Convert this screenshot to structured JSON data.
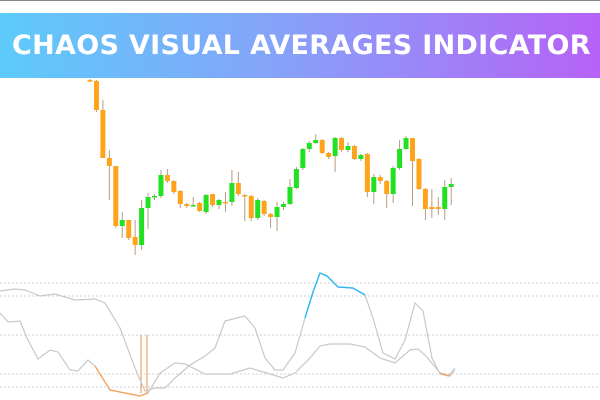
{
  "banner": {
    "title": "CHAOS VISUAL AVERAGES INDICATOR",
    "gradient": [
      "#4fc6fa",
      "#b25af6"
    ]
  },
  "colors": {
    "bull": "#22e022",
    "bear": "#ffa31a",
    "wick": "#b89a80",
    "indicator_line": "#c8c8c8",
    "bull_signal": "#29b6f6",
    "bear_signal": "#f4a460",
    "grid": "#d0d0d0"
  },
  "chart_data": [
    {
      "type": "candlestick",
      "note_units": "relative price",
      "candles": [
        {
          "o": 180,
          "c": 179,
          "h": 181,
          "l": 178
        },
        {
          "o": 179,
          "c": 150,
          "h": 180,
          "l": 148
        },
        {
          "o": 150,
          "c": 102,
          "h": 160,
          "l": 102
        },
        {
          "o": 102,
          "c": 94,
          "h": 110,
          "l": 60
        },
        {
          "o": 94,
          "c": 34,
          "h": 94,
          "l": 32
        },
        {
          "o": 34,
          "c": 40,
          "h": 48,
          "l": 22
        },
        {
          "o": 40,
          "c": 22,
          "h": 40,
          "l": 20
        },
        {
          "o": 23,
          "c": 15,
          "h": 40,
          "l": 5
        },
        {
          "o": 15,
          "c": 52,
          "h": 60,
          "l": 10
        },
        {
          "o": 52,
          "c": 63,
          "h": 67,
          "l": 31
        },
        {
          "o": 63,
          "c": 64,
          "h": 66,
          "l": 60
        },
        {
          "o": 64,
          "c": 85,
          "h": 90,
          "l": 62
        },
        {
          "o": 85,
          "c": 79,
          "h": 91,
          "l": 77
        },
        {
          "o": 79,
          "c": 68,
          "h": 80,
          "l": 66
        },
        {
          "o": 69,
          "c": 56,
          "h": 70,
          "l": 52
        },
        {
          "o": 56,
          "c": 54,
          "h": 57,
          "l": 52
        },
        {
          "o": 54,
          "c": 55,
          "h": 63,
          "l": 53
        },
        {
          "o": 57,
          "c": 49,
          "h": 58,
          "l": 48
        },
        {
          "o": 48,
          "c": 65,
          "h": 66,
          "l": 46
        },
        {
          "o": 66,
          "c": 55,
          "h": 66,
          "l": 53
        },
        {
          "o": 55,
          "c": 60,
          "h": 61,
          "l": 51
        },
        {
          "o": 58,
          "c": 57,
          "h": 68,
          "l": 48
        },
        {
          "o": 58,
          "c": 77,
          "h": 90,
          "l": 54
        },
        {
          "o": 77,
          "c": 66,
          "h": 88,
          "l": 64
        },
        {
          "o": 65,
          "c": 64,
          "h": 66,
          "l": 39
        },
        {
          "o": 64,
          "c": 42,
          "h": 65,
          "l": 39
        },
        {
          "o": 42,
          "c": 60,
          "h": 62,
          "l": 40
        },
        {
          "o": 59,
          "c": 46,
          "h": 60,
          "l": 44
        },
        {
          "o": 46,
          "c": 43,
          "h": 47,
          "l": 32
        },
        {
          "o": 43,
          "c": 53,
          "h": 58,
          "l": 29
        },
        {
          "o": 53,
          "c": 56,
          "h": 58,
          "l": 50
        },
        {
          "o": 56,
          "c": 73,
          "h": 81,
          "l": 55
        },
        {
          "o": 72,
          "c": 91,
          "h": 93,
          "l": 71
        },
        {
          "o": 92,
          "c": 111,
          "h": 112,
          "l": 90
        },
        {
          "o": 111,
          "c": 117,
          "h": 119,
          "l": 108
        },
        {
          "o": 117,
          "c": 120,
          "h": 126,
          "l": 116
        },
        {
          "o": 120,
          "c": 107,
          "h": 121,
          "l": 106
        },
        {
          "o": 107,
          "c": 103,
          "h": 108,
          "l": 101
        },
        {
          "o": 104,
          "c": 122,
          "h": 123,
          "l": 88
        },
        {
          "o": 122,
          "c": 110,
          "h": 123,
          "l": 108
        },
        {
          "o": 110,
          "c": 114,
          "h": 118,
          "l": 108
        },
        {
          "o": 114,
          "c": 101,
          "h": 115,
          "l": 100
        },
        {
          "o": 101,
          "c": 105,
          "h": 106,
          "l": 99
        },
        {
          "o": 106,
          "c": 68,
          "h": 107,
          "l": 63
        },
        {
          "o": 68,
          "c": 83,
          "h": 86,
          "l": 56
        },
        {
          "o": 83,
          "c": 79,
          "h": 85,
          "l": 76
        },
        {
          "o": 79,
          "c": 66,
          "h": 80,
          "l": 52
        },
        {
          "o": 66,
          "c": 92,
          "h": 94,
          "l": 57
        },
        {
          "o": 92,
          "c": 111,
          "h": 120,
          "l": 90
        },
        {
          "o": 111,
          "c": 122,
          "h": 124,
          "l": 110
        },
        {
          "o": 122,
          "c": 99,
          "h": 122,
          "l": 54
        },
        {
          "o": 101,
          "c": 71,
          "h": 102,
          "l": 70
        },
        {
          "o": 71,
          "c": 51,
          "h": 72,
          "l": 40
        },
        {
          "o": 53,
          "c": 51,
          "h": 71,
          "l": 42
        },
        {
          "o": 53,
          "c": 51,
          "h": 63,
          "l": 45
        },
        {
          "o": 51,
          "c": 73,
          "h": 80,
          "l": 40
        },
        {
          "o": 73,
          "c": 76,
          "h": 82,
          "l": 55
        }
      ]
    },
    {
      "type": "line",
      "grid": "dotted horizontal",
      "levels": [
        105,
        92,
        53,
        14,
        1
      ],
      "series": [
        {
          "values": [
            [
              0,
              97
            ],
            [
              15,
              99
            ],
            [
              25,
              98
            ],
            [
              40,
              92
            ],
            [
              55,
              94
            ],
            [
              75,
              88
            ],
            [
              95,
              89
            ],
            [
              105,
              85
            ],
            [
              120,
              60
            ],
            [
              135,
              20
            ],
            [
              145,
              -3
            ],
            [
              155,
              0
            ],
            [
              165,
              0
            ],
            [
              175,
              10
            ],
            [
              190,
              23
            ],
            [
              205,
              32
            ],
            [
              215,
              40
            ],
            [
              225,
              67
            ],
            [
              237,
              70
            ],
            [
              245,
              72
            ],
            [
              255,
              60
            ],
            [
              265,
              30
            ],
            [
              275,
              18
            ],
            [
              283,
              18
            ],
            [
              295,
              35
            ],
            [
              305,
              70
            ],
            [
              313,
              96
            ],
            [
              320,
              115
            ],
            [
              327,
              112
            ],
            [
              338,
              101
            ],
            [
              353,
              100
            ],
            [
              365,
              93
            ],
            [
              373,
              70
            ],
            [
              383,
              35
            ],
            [
              395,
              29
            ],
            [
              405,
              48
            ],
            [
              415,
              85
            ],
            [
              423,
              77
            ],
            [
              432,
              30
            ],
            [
              440,
              14
            ],
            [
              448,
              12
            ],
            [
              455,
              20
            ]
          ],
          "highlight": {
            "color": "bull_signal",
            "from": 302,
            "to": 366
          }
        },
        {
          "values": [
            [
              0,
              75
            ],
            [
              8,
              66
            ],
            [
              20,
              67
            ],
            [
              27,
              50
            ],
            [
              38,
              29
            ],
            [
              50,
              38
            ],
            [
              58,
              36
            ],
            [
              70,
              18
            ],
            [
              78,
              17
            ],
            [
              88,
              28
            ],
            [
              95,
              22
            ],
            [
              110,
              -2
            ],
            [
              125,
              -5
            ],
            [
              140,
              -8
            ],
            [
              148,
              -5
            ],
            [
              160,
              15
            ],
            [
              175,
              25
            ],
            [
              185,
              24
            ],
            [
              205,
              14
            ],
            [
              230,
              14
            ],
            [
              250,
              20
            ],
            [
              270,
              14
            ],
            [
              283,
              10
            ],
            [
              295,
              15
            ],
            [
              310,
              30
            ],
            [
              320,
              42
            ],
            [
              330,
              44
            ],
            [
              350,
              44
            ],
            [
              365,
              41
            ],
            [
              380,
              30
            ],
            [
              395,
              25
            ],
            [
              410,
              38
            ],
            [
              418,
              39
            ],
            [
              426,
              32
            ],
            [
              440,
              15
            ],
            [
              450,
              12
            ],
            [
              455,
              18
            ]
          ],
          "highlight": [
            {
              "color": "bear_signal",
              "from": 95,
              "to": 150
            },
            {
              "color": "bear_signal",
              "from": 438,
              "to": 451
            }
          ]
        }
      ],
      "signal_bars": [
        141,
        147
      ]
    }
  ]
}
